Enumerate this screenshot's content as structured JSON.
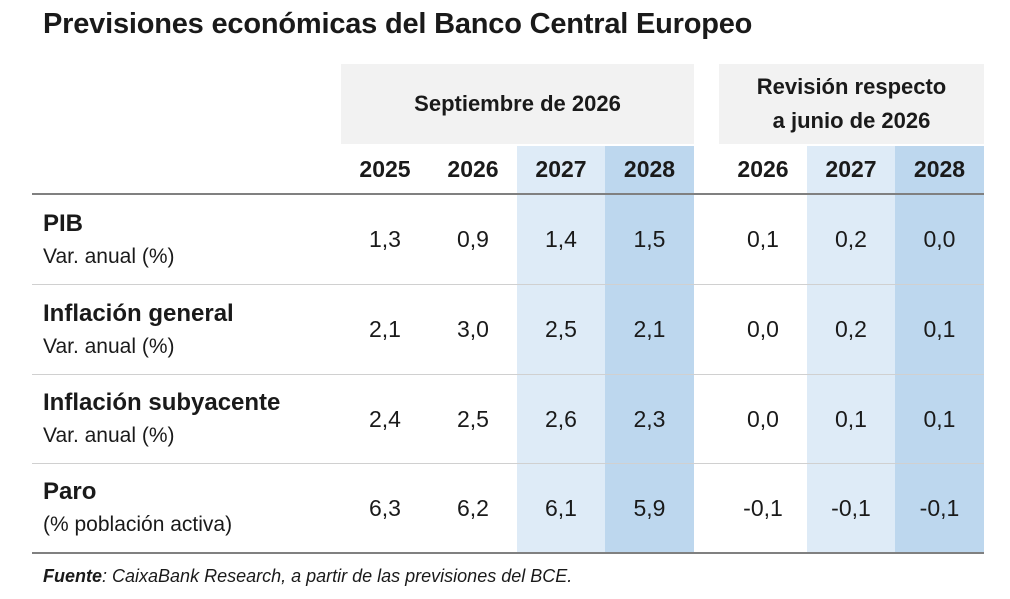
{
  "title": "Previsiones económicas del Banco Central Europeo",
  "header": {
    "group_left": "Septiembre de 2026",
    "group_right_line1": "Revisión respecto",
    "group_right_line2": "a junio de 2026",
    "years_left": [
      "2025",
      "2026",
      "2027",
      "2028"
    ],
    "years_right": [
      "2026",
      "2027",
      "2028"
    ]
  },
  "rows": [
    {
      "label": "PIB",
      "sublabel": "Var. anual (%)",
      "left": [
        "1,3",
        "0,9",
        "1,4",
        "1,5"
      ],
      "right": [
        "0,1",
        "0,2",
        "0,0"
      ]
    },
    {
      "label": "Inflación general",
      "sublabel": "Var. anual (%)",
      "left": [
        "2,1",
        "3,0",
        "2,5",
        "2,1"
      ],
      "right": [
        "0,0",
        "0,2",
        "0,1"
      ]
    },
    {
      "label": "Inflación subyacente",
      "sublabel": "Var. anual (%)",
      "left": [
        "2,4",
        "2,5",
        "2,6",
        "2,3"
      ],
      "right": [
        "0,0",
        "0,1",
        "0,1"
      ]
    },
    {
      "label": "Paro",
      "sublabel": "(% población activa)",
      "left": [
        "6,3",
        "6,2",
        "6,1",
        "5,9"
      ],
      "right": [
        "-0,1",
        "-0,1",
        "-0,1"
      ]
    }
  ],
  "source": {
    "label": "Fuente",
    "text": ": CaixaBank Research, a partir de las previsiones del BCE."
  },
  "colors": {
    "header_grey": "#f2f2f2",
    "light_blue": "#deebf7",
    "mid_blue": "#bdd7ee",
    "rule": "#808080"
  }
}
